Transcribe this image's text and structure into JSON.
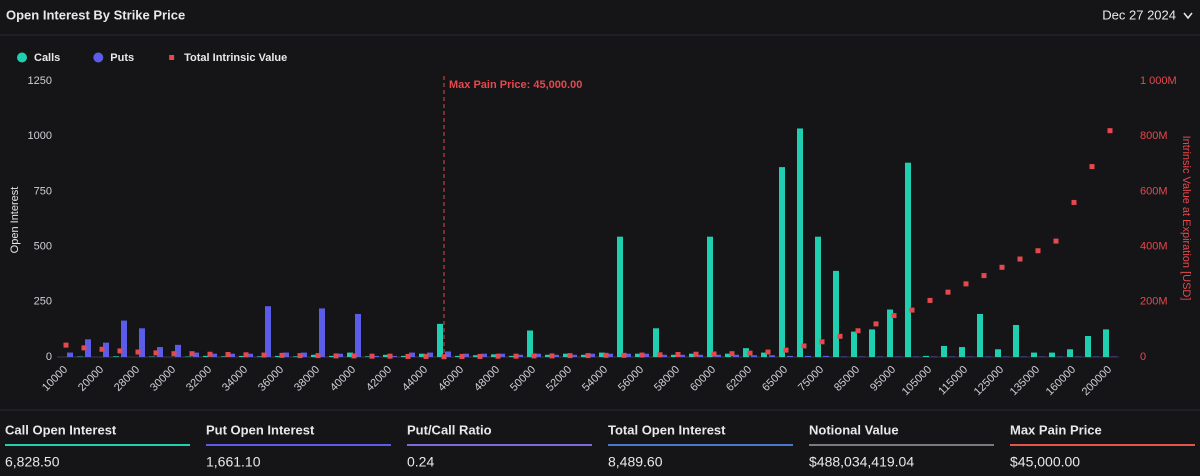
{
  "chart_data": {
    "type": "bar",
    "title": "Open Interest By Strike Price",
    "ylabel": "Open Interest",
    "y2label": "Intrinsic Value at Expiration [USD]",
    "annotation": "Max Pain Price: 45,000.00",
    "categories": [
      "10000",
      null,
      "20000",
      null,
      "28000",
      null,
      "30000",
      null,
      "32000",
      null,
      "34000",
      null,
      "36000",
      null,
      "38000",
      null,
      "40000",
      null,
      "42000",
      null,
      "44000",
      null,
      "46000",
      null,
      "48000",
      null,
      "50000",
      null,
      "52000",
      null,
      "54000",
      null,
      "56000",
      null,
      "58000",
      null,
      "60000",
      null,
      "62000",
      null,
      "65000",
      null,
      "75000",
      null,
      "85000",
      null,
      "95000",
      null,
      "105000",
      null,
      "115000",
      null,
      "125000",
      null,
      "135000",
      null,
      "160000",
      null,
      "200000"
    ],
    "series": [
      {
        "name": "Calls",
        "color": "#1fcfb0",
        "values": [
          0,
          2,
          0,
          3,
          0,
          2,
          0,
          2,
          5,
          3,
          5,
          3,
          5,
          3,
          10,
          5,
          20,
          3,
          10,
          5,
          15,
          150,
          5,
          8,
          12,
          5,
          120,
          10,
          15,
          10,
          20,
          545,
          15,
          130,
          10,
          15,
          545,
          15,
          40,
          20,
          860,
          1035,
          545,
          390,
          115,
          125,
          215,
          880,
          5,
          50,
          45,
          195,
          35,
          145,
          20,
          20,
          35,
          95,
          125
        ]
      },
      {
        "name": "Puts",
        "color": "#5b5ce8",
        "values": [
          20,
          80,
          65,
          165,
          130,
          45,
          55,
          20,
          15,
          15,
          15,
          230,
          20,
          20,
          220,
          15,
          195,
          5,
          5,
          20,
          20,
          25,
          15,
          15,
          15,
          10,
          15,
          10,
          10,
          15,
          15,
          15,
          15,
          10,
          10,
          10,
          10,
          10,
          8,
          8,
          5,
          5,
          5,
          2,
          2,
          2,
          2,
          2,
          2,
          2,
          2,
          2,
          2,
          2,
          2,
          2,
          2,
          2,
          2
        ]
      },
      {
        "name": "Total Intrinsic Value",
        "color": "#e5484d",
        "axis": "y2",
        "values": [
          43,
          33,
          28,
          22,
          18,
          15,
          12,
          12,
          10,
          9,
          8,
          7,
          6,
          5,
          5,
          4,
          4,
          3,
          3,
          2,
          2,
          1,
          2,
          2,
          3,
          3,
          4,
          4,
          5,
          5,
          6,
          6,
          7,
          8,
          9,
          10,
          11,
          12,
          14,
          18,
          25,
          40,
          55,
          75,
          95,
          120,
          150,
          170,
          205,
          235,
          265,
          295,
          325,
          355,
          385,
          420,
          560,
          690,
          820
        ]
      }
    ],
    "ylim": [
      0,
      1250
    ],
    "yticks": [
      0,
      250,
      500,
      750,
      1000,
      1250
    ],
    "y2lim": [
      0,
      1000
    ],
    "y2ticks": [
      0,
      {
        "value": 200,
        "label": "200M"
      },
      {
        "value": 400,
        "label": "400M"
      },
      {
        "value": 600,
        "label": "600M"
      },
      {
        "value": 800,
        "label": "800M"
      },
      {
        "value": 1000,
        "label": "1 000M"
      }
    ]
  },
  "date_selector": "Dec 27 2024",
  "stats": [
    {
      "label": "Call Open Interest",
      "value": "6,828.50",
      "color": "#1fcfb0"
    },
    {
      "label": "Put Open Interest",
      "value": "1,661.10",
      "color": "#5b5ce8"
    },
    {
      "label": "Put/Call Ratio",
      "value": "0.24",
      "color": "#7b6ad8"
    },
    {
      "label": "Total Open Interest",
      "value": "8,489.60",
      "color": "#4a78c8"
    },
    {
      "label": "Notional Value",
      "value": "$488,034,419.04",
      "color": "#7a7a80"
    },
    {
      "label": "Max Pain Price",
      "value": "$45,000.00",
      "color": "#e5534b"
    }
  ]
}
